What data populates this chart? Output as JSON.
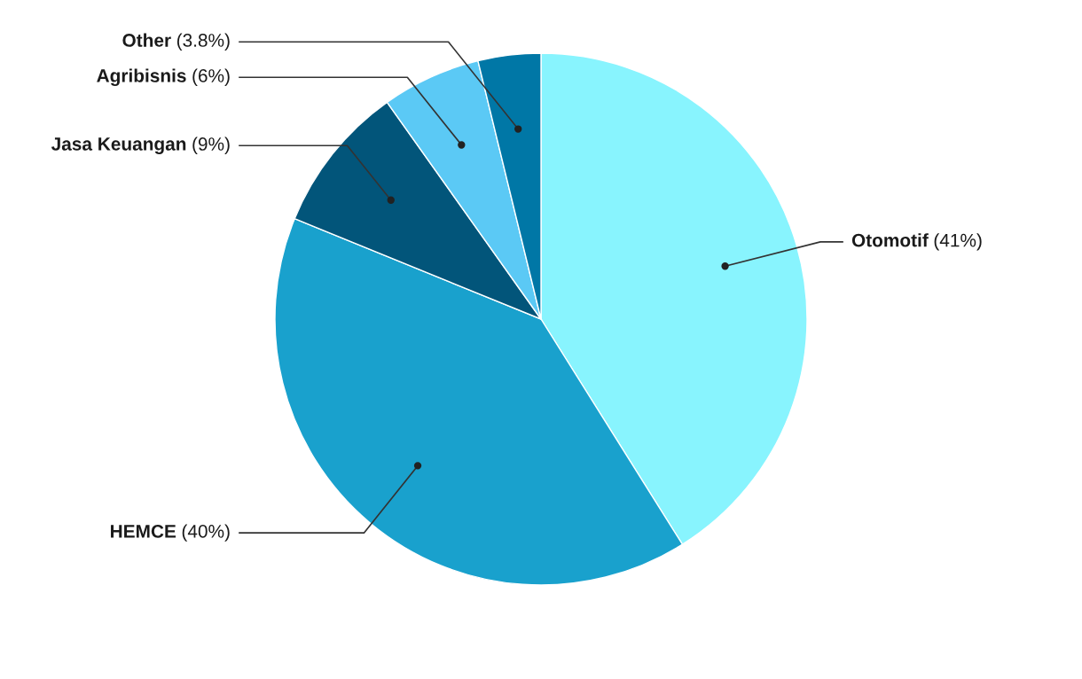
{
  "chart_data": {
    "type": "pie",
    "categories": [
      "Otomotif",
      "HEMCE",
      "Jasa Keuangan",
      "Agribisnis",
      "Other"
    ],
    "values": [
      41,
      40,
      9,
      6,
      3.8
    ],
    "colors": [
      "#88f4fe",
      "#19a1cd",
      "#02557a",
      "#5bc9f5",
      "#0077a6"
    ],
    "value_labels": [
      "(41%)",
      "(40%)",
      "(9%)",
      "(6%)",
      "(3.8%)"
    ],
    "legend": false
  }
}
